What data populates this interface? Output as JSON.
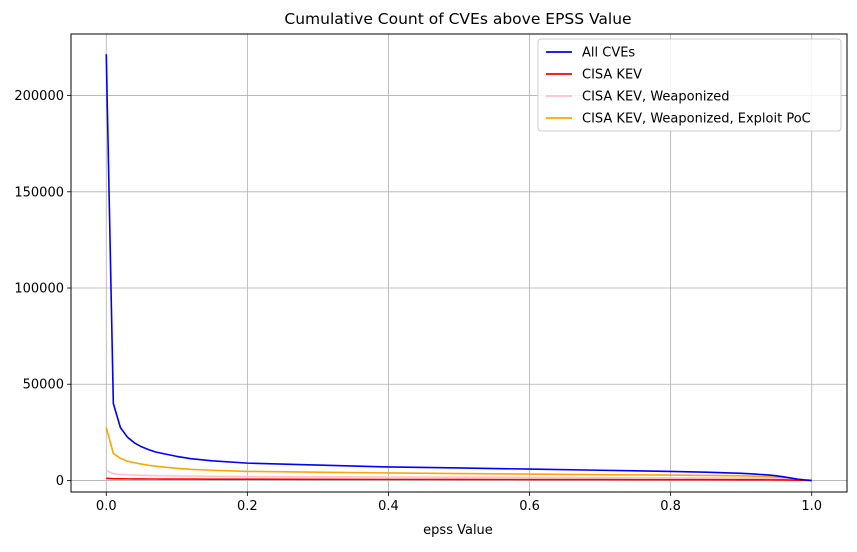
{
  "chart_data": {
    "type": "line",
    "title": "Cumulative Count of CVEs above EPSS Value",
    "xlabel": "epss Value",
    "ylabel": "",
    "xlim": [
      -0.05,
      1.05
    ],
    "ylim": [
      -6000,
      232000
    ],
    "xticks": [
      0.0,
      0.2,
      0.4,
      0.6,
      0.8,
      1.0
    ],
    "xtick_labels": [
      "0.0",
      "0.2",
      "0.4",
      "0.6",
      "0.8",
      "1.0"
    ],
    "yticks": [
      0,
      50000,
      100000,
      150000,
      200000
    ],
    "ytick_labels": [
      "0",
      "50000",
      "100000",
      "150000",
      "200000"
    ],
    "grid": true,
    "legend_position": "top-right",
    "x": [
      0.0,
      0.01,
      0.02,
      0.03,
      0.04,
      0.05,
      0.06,
      0.07,
      0.08,
      0.1,
      0.12,
      0.15,
      0.2,
      0.3,
      0.4,
      0.5,
      0.6,
      0.7,
      0.8,
      0.85,
      0.9,
      0.92,
      0.94,
      0.95,
      0.96,
      0.97,
      0.98,
      0.99,
      1.0
    ],
    "series": [
      {
        "name": "All CVEs",
        "color": "#0000ff",
        "values": [
          221500,
          40000,
          27500,
          22500,
          19500,
          17500,
          16000,
          14800,
          14000,
          12500,
          11300,
          10200,
          9000,
          8000,
          7000,
          6500,
          5900,
          5300,
          4700,
          4300,
          3700,
          3300,
          2800,
          2400,
          1900,
          1300,
          700,
          300,
          0
        ]
      },
      {
        "name": "CISA KEV",
        "color": "#ff0000",
        "values": [
          1100,
          900,
          850,
          820,
          800,
          780,
          760,
          750,
          740,
          720,
          700,
          680,
          650,
          600,
          560,
          520,
          480,
          440,
          400,
          380,
          350,
          330,
          300,
          280,
          250,
          200,
          150,
          80,
          0
        ]
      },
      {
        "name": "CISA KEV, Weaponized",
        "color": "#ffc0cb",
        "values": [
          5200,
          3500,
          3100,
          2900,
          2750,
          2650,
          2550,
          2500,
          2450,
          2350,
          2250,
          2150,
          2000,
          1900,
          1800,
          1700,
          1600,
          1500,
          1400,
          1300,
          1200,
          1100,
          950,
          850,
          700,
          550,
          350,
          150,
          0
        ]
      },
      {
        "name": "CISA KEV, Weaponized, Exploit PoC",
        "color": "#ffa500",
        "values": [
          27500,
          14000,
          11500,
          10000,
          9200,
          8500,
          7900,
          7400,
          7000,
          6300,
          5800,
          5300,
          4700,
          4300,
          3900,
          3600,
          3300,
          3000,
          2800,
          2600,
          2400,
          2200,
          1900,
          1700,
          1400,
          1000,
          600,
          250,
          0
        ]
      }
    ]
  }
}
